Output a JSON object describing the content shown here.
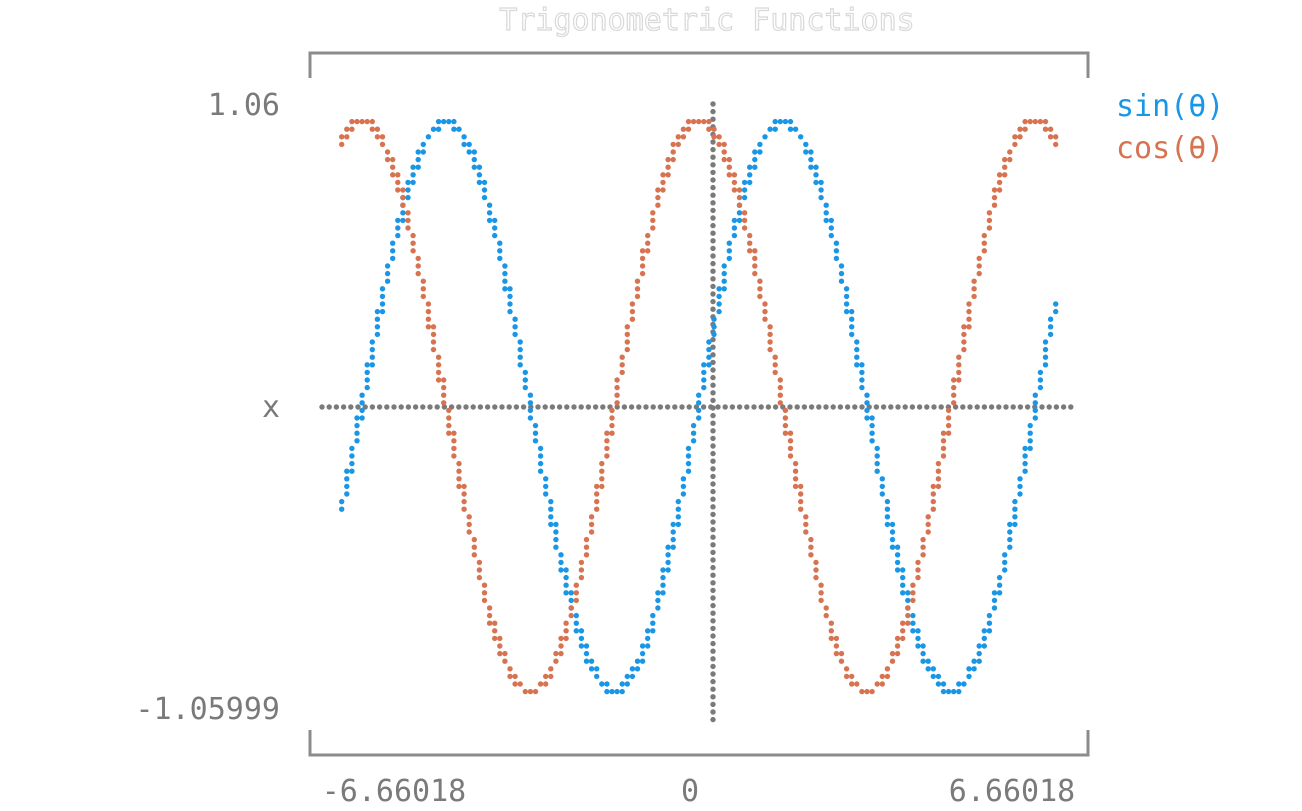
{
  "chart_data": {
    "type": "scatter",
    "title": "Trigonometric Functions",
    "xlabel": "",
    "ylabel": "",
    "xlim": [
      -6.66018,
      6.66018
    ],
    "ylim": [
      -1.05999,
      1.06
    ],
    "xticks": [
      {
        "value": -6.66018,
        "label": "-6.66018"
      },
      {
        "value": 0,
        "label": "0"
      },
      {
        "value": 6.66018,
        "label": "6.66018"
      }
    ],
    "yticks": [
      {
        "value": 1.06,
        "label": "1.06"
      },
      {
        "value": 0,
        "label": "x"
      },
      {
        "value": -1.05999,
        "label": "-1.05999"
      }
    ],
    "grid": false,
    "axes_lines": true,
    "legend_position": "right",
    "series": [
      {
        "name": "sin(θ)",
        "function": "sin",
        "color": "#1a96e6"
      },
      {
        "name": "cos(θ)",
        "function": "cos",
        "color": "#d77350"
      }
    ],
    "axis_color": "#7a7a7a",
    "frame_color": "#8c8c8c"
  }
}
